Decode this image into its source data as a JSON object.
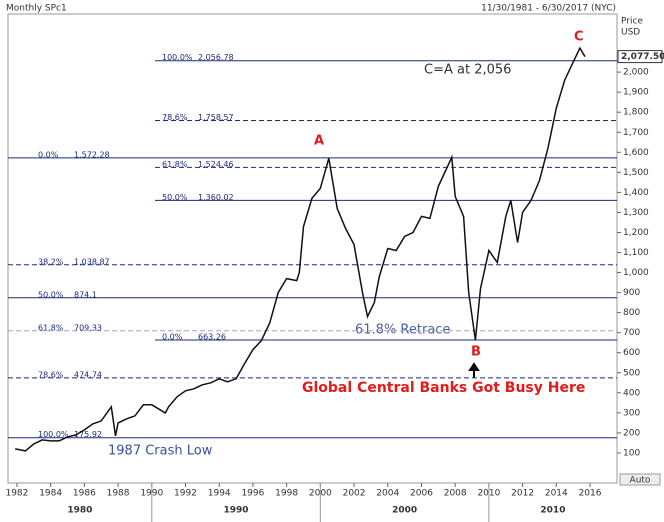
{
  "chart_data": {
    "type": "line",
    "title": "Monthly SPc1",
    "subtitle": "11/30/1981 - 6/30/2017 (NYC)",
    "y_axis_label": "Price",
    "y_axis_unit": "USD",
    "autoscale_label": "Auto",
    "last_price": {
      "value": 2077.5,
      "label": "2,077.50"
    },
    "xlim": [
      1981.47,
      2017.6
    ],
    "ylim": [
      -50,
      2290
    ],
    "xticks": [
      1982,
      1984,
      1986,
      1988,
      1990,
      1992,
      1994,
      1996,
      1998,
      2000,
      2002,
      2004,
      2006,
      2008,
      2010,
      2012,
      2014,
      2016
    ],
    "decades": [
      1980,
      1990,
      2000,
      2010
    ],
    "yticks": [
      100,
      200,
      300,
      400,
      500,
      600,
      700,
      800,
      900,
      {
        "value": 1000,
        "label": "1,000"
      },
      {
        "value": 1100,
        "label": "1,100"
      },
      {
        "value": 1200,
        "label": "1,200"
      },
      {
        "value": 1300,
        "label": "1,300"
      },
      {
        "value": 1400,
        "label": "1,400"
      },
      {
        "value": 1500,
        "label": "1,500"
      },
      {
        "value": 1600,
        "label": "1,600"
      },
      {
        "value": 1700,
        "label": "1,700"
      },
      {
        "value": 1800,
        "label": "1,800"
      },
      {
        "value": 1900,
        "label": "1,900"
      },
      {
        "value": 2000,
        "label": "2,000"
      }
    ],
    "series": [
      {
        "name": "SPc1",
        "color": "#111111",
        "x": [
          1981.9,
          1982.5,
          1983,
          1983.5,
          1984,
          1984.5,
          1985,
          1985.5,
          1986,
          1986.5,
          1987,
          1987.6,
          1987.85,
          1988,
          1988.5,
          1989,
          1989.5,
          1990,
          1990.8,
          1991,
          1991.5,
          1992,
          1992.5,
          1993,
          1993.5,
          1994,
          1994.5,
          1995,
          1995.5,
          1996,
          1996.5,
          1997,
          1997.5,
          1998,
          1998.6,
          1998.75,
          1999,
          1999.5,
          2000,
          2000.5,
          2001,
          2001.5,
          2002,
          2002.5,
          2002.8,
          2003.2,
          2003.5,
          2004,
          2004.5,
          2005,
          2005.5,
          2006,
          2006.5,
          2007,
          2007.8,
          2008,
          2008.5,
          2008.8,
          2009.2,
          2009.5,
          2010,
          2010.5,
          2011,
          2011.3,
          2011.7,
          2012,
          2012.5,
          2013,
          2013.5,
          2014,
          2014.5,
          2015,
          2015.4,
          2015.7
        ],
        "values": [
          120,
          110,
          145,
          165,
          160,
          160,
          180,
          190,
          215,
          245,
          260,
          330,
          185,
          250,
          270,
          285,
          340,
          340,
          300,
          330,
          380,
          410,
          420,
          440,
          450,
          470,
          455,
          470,
          545,
          615,
          660,
          750,
          900,
          970,
          960,
          1000,
          1230,
          1370,
          1420,
          1570,
          1320,
          1220,
          1140,
          900,
          780,
          850,
          980,
          1120,
          1110,
          1180,
          1200,
          1280,
          1270,
          1430,
          1575,
          1380,
          1280,
          900,
          663,
          920,
          1110,
          1050,
          1280,
          1360,
          1150,
          1300,
          1360,
          1460,
          1620,
          1820,
          1960,
          2050,
          2120,
          2077.5
        ]
      }
    ],
    "levels": [
      {
        "pct": "100.0%",
        "value": 2056.78,
        "label": "2,056.78",
        "dashed": false
      },
      {
        "pct": "78.6%",
        "value": 1758.57,
        "label": "1,758.57",
        "dashed": true
      },
      {
        "pct": "0.0%",
        "value": 1572.28,
        "label": "1,572.28",
        "dashed": false
      },
      {
        "pct": "61.8%",
        "value": 1524.46,
        "label": "1,524.46",
        "dashed": true
      },
      {
        "pct": "50.0%",
        "value": 1360.02,
        "label": "1,360.02",
        "dashed": false
      },
      {
        "pct": "38.2%",
        "value": 1038.87,
        "label": "1,038.87",
        "dashed": true
      },
      {
        "pct": "50.0%",
        "value": 874.1,
        "label": "874.1",
        "dashed": false
      },
      {
        "pct": "61.8%",
        "value": 709.33,
        "label": "709.33",
        "dashed": true
      },
      {
        "pct": "0.0%",
        "value": 663.26,
        "label": "663.26",
        "dashed": false
      },
      {
        "pct": "78.6%",
        "value": 474.74,
        "label": "474.74",
        "dashed": true
      },
      {
        "pct": "100.0%",
        "value": 175.92,
        "label": "175.92",
        "dashed": false
      }
    ],
    "annotations": {
      "a": "A",
      "b": "B",
      "c": "C",
      "target": "C=A at 2,056",
      "retrace": "61.8% Retrace",
      "banks": "Global Central Banks Got Busy Here",
      "crash": "1987 Crash Low"
    }
  }
}
